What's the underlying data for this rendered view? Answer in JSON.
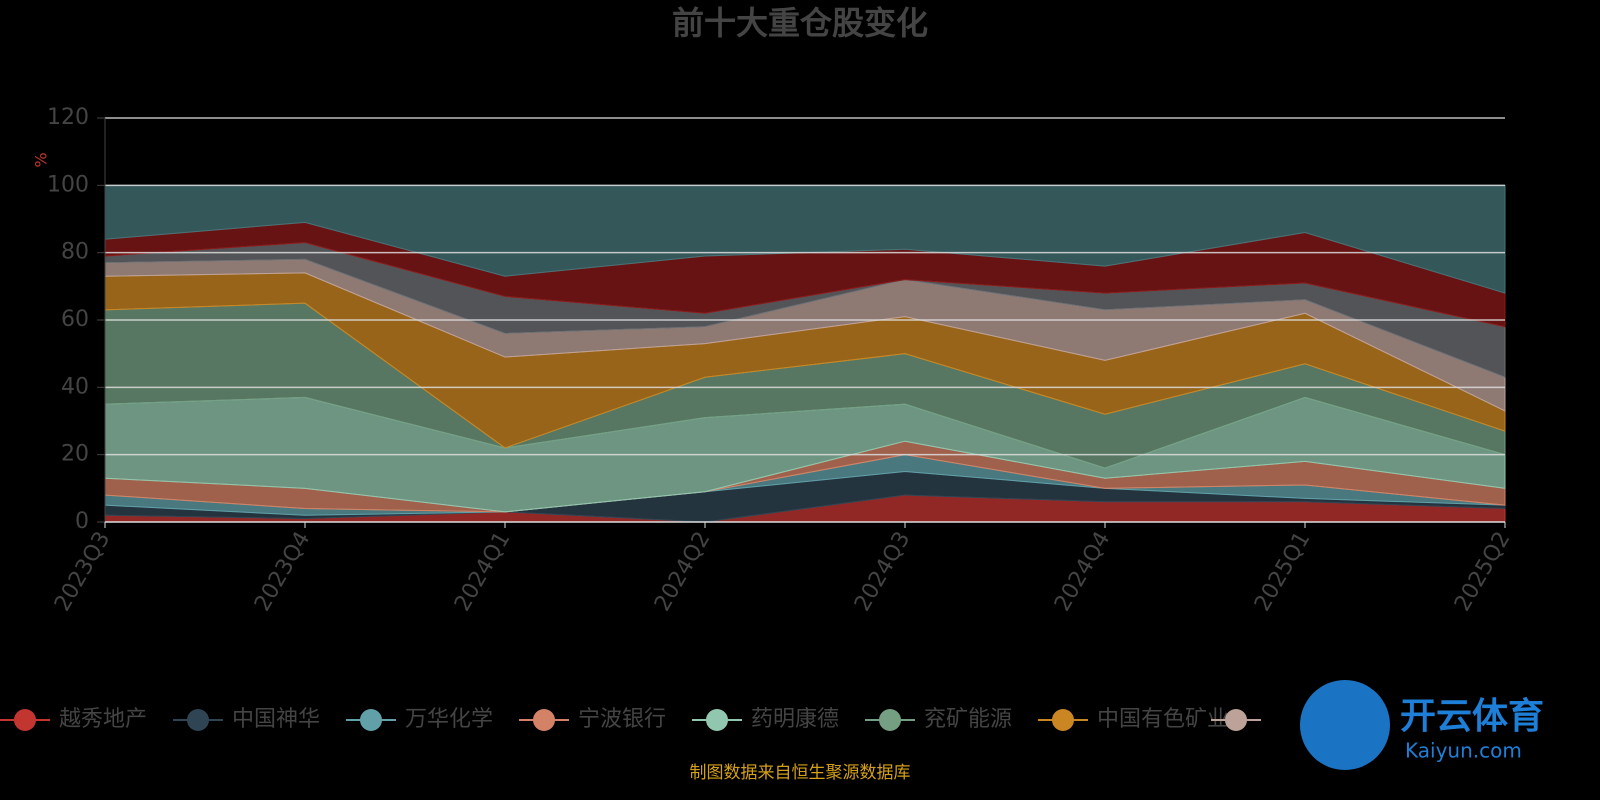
{
  "chart_data": {
    "type": "stacked_area",
    "title": "前十大重仓股变化",
    "y_label": "%",
    "source": "制图数据来自恒生聚源数据库",
    "watermark": {
      "title": "开云体育",
      "subtitle": "Kaiyun.com"
    },
    "categories": [
      "2023Q3",
      "2023Q4",
      "2024Q1",
      "2024Q2",
      "2024Q3",
      "2024Q4",
      "2025Q1",
      "2025Q2"
    ],
    "ylim": [
      0,
      120
    ],
    "yticks": [
      0,
      20,
      40,
      60,
      80,
      100,
      120
    ],
    "grid": true,
    "series": [
      {
        "name": "越秀地产",
        "color": "#c23531",
        "values": [
          2,
          1,
          3,
          0,
          8,
          6,
          6,
          4
        ]
      },
      {
        "name": "中国神华",
        "color": "#2f4554",
        "values": [
          3,
          1,
          0,
          9,
          7,
          4,
          1,
          1
        ]
      },
      {
        "name": "万华化学",
        "color": "#61a0a8",
        "values": [
          3,
          2,
          0,
          0,
          5,
          0,
          4,
          0
        ]
      },
      {
        "name": "宁波银行",
        "color": "#d48265",
        "values": [
          5,
          6,
          0,
          0,
          4,
          3,
          7,
          5
        ]
      },
      {
        "name": "药明康德",
        "color": "#91c7ae",
        "values": [
          22,
          27,
          19,
          22,
          11,
          3,
          19,
          10
        ]
      },
      {
        "name": "兖矿能源",
        "color": "#749f83",
        "values": [
          28,
          28,
          0,
          12,
          15,
          16,
          10,
          7
        ]
      },
      {
        "name": "中国有色矿业",
        "color": "#ca8622",
        "values": [
          10,
          9,
          27,
          10,
          11,
          16,
          15,
          6
        ]
      },
      {
        "color": "#bda29a",
        "values": [
          4,
          4,
          7,
          5,
          11,
          15,
          4,
          10
        ]
      },
      {
        "color": "#6e7074",
        "values": [
          2,
          5,
          11,
          4,
          0,
          5,
          5,
          15
        ]
      },
      {
        "color": "#8b1a1a",
        "values": [
          5,
          6,
          6,
          17,
          9,
          8,
          15,
          10
        ]
      },
      {
        "color": "#467478",
        "values": [
          16,
          11,
          27,
          21,
          19,
          24,
          14,
          32
        ]
      }
    ]
  }
}
